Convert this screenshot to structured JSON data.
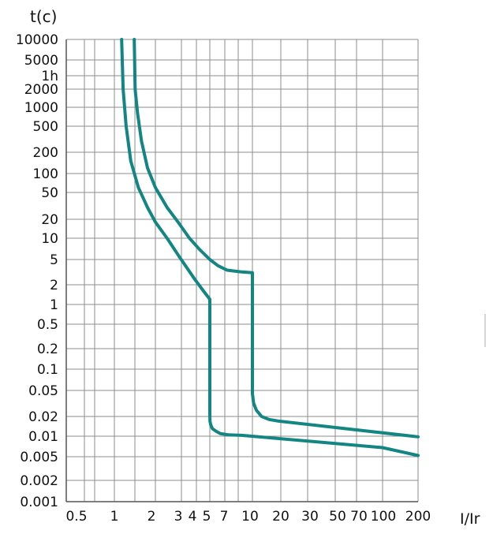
{
  "chart_data": {
    "type": "line",
    "title": "",
    "xlabel": "I/Ir",
    "ylabel": "t(c)",
    "x_scale": "log",
    "y_scale": "log",
    "xlim": [
      0.5,
      200
    ],
    "ylim": [
      0.001,
      10000
    ],
    "grid": true,
    "x_tick_labels": [
      "0.5",
      "1",
      "2",
      "3",
      "4",
      "5",
      "7",
      "10",
      "20",
      "30",
      "50",
      "70",
      "100",
      "200"
    ],
    "y_tick_labels": [
      "10000",
      "5000",
      "1h",
      "2000",
      "1000",
      "500",
      "200",
      "100",
      "50",
      "20",
      "10",
      "5",
      "2",
      "1",
      "0.5",
      "0.2",
      "0.1",
      "0.05",
      "0.02",
      "0.01",
      "0.005",
      "0.002",
      "0.001"
    ],
    "series": [
      {
        "x": [
          1.13,
          1.16,
          1.22,
          1.32,
          1.5,
          1.75,
          2.0,
          2.4,
          2.9,
          3.4,
          3.9,
          4.5,
          5.0,
          5.0,
          5.02,
          5.1,
          5.3,
          5.7,
          6.3,
          7.3,
          8.7,
          100,
          200
        ],
        "y": [
          10000,
          2000,
          500,
          150,
          60,
          30,
          18,
          10,
          5.5,
          3.5,
          2.4,
          1.6,
          1.2,
          0.022,
          0.017,
          0.015,
          0.013,
          0.012,
          0.011,
          0.0105,
          0.0103,
          0.0068,
          0.0052
        ]
      },
      {
        "x": [
          1.4,
          1.42,
          1.48,
          1.58,
          1.75,
          2.0,
          2.4,
          2.9,
          3.5,
          4.2,
          5.0,
          6.0,
          7.2,
          8.6,
          10.0,
          10.0,
          10.3,
          11,
          12.5,
          15,
          19,
          200
        ],
        "y": [
          10000,
          2000,
          800,
          300,
          120,
          60,
          30,
          17,
          10,
          7,
          5,
          4,
          3.4,
          3.2,
          3.1,
          0.045,
          0.032,
          0.025,
          0.02,
          0.018,
          0.017,
          0.0098
        ]
      }
    ],
    "line_color": "#138684"
  }
}
